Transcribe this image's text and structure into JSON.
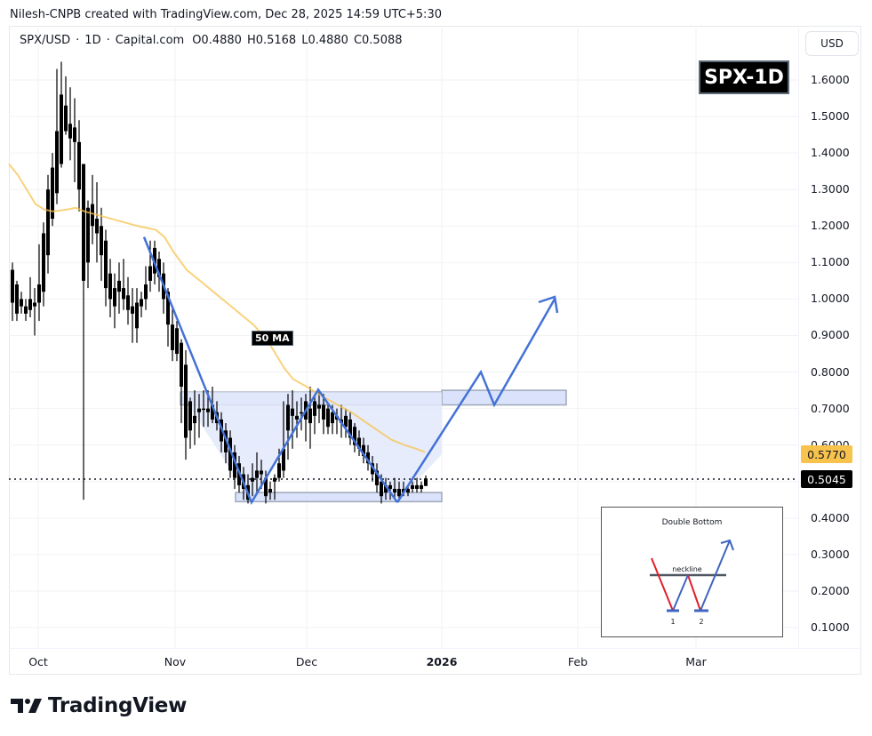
{
  "header": {
    "credit": "Nilesh-CNPB created with TradingView.com, Dec 28, 2025 14:59 UTC+5:30"
  },
  "legend": {
    "symbol": "SPX/USD",
    "sep1": "·",
    "interval": "1D",
    "sep2": "·",
    "source": "Capital.com",
    "open": "O0.4880",
    "high": "H0.5168",
    "low": "L0.4880",
    "close": "C0.5088"
  },
  "currency_button": "USD",
  "chart_title_badge": "SPX-1D",
  "ma_label": "50 MA",
  "price_tags": {
    "ma_value": "0.5770",
    "last_price": "0.5045"
  },
  "inset": {
    "title": "Double Bottom",
    "neckline_label": "neckline",
    "bottom1_label": "1",
    "bottom2_label": "2"
  },
  "brand": {
    "name": "TradingView"
  },
  "colors": {
    "candle": "#000000",
    "ma_line": "#f7c34d",
    "pattern_line": "#4472d6",
    "zone_fill": "#d6e0fb",
    "zone_border": "#9ea8b8",
    "inset_red": "#e0202a",
    "inset_blue": "#3f64c0",
    "inset_neck": "#4f5661"
  },
  "chart_data": {
    "type": "candlestick",
    "title": "SPX/USD · 1D · Capital.com",
    "xlabel": "",
    "ylabel": "USD",
    "ylim": [
      0.05,
      1.75
    ],
    "grid": true,
    "y_ticks": [
      "1.6000",
      "1.5000",
      "1.4000",
      "1.3000",
      "1.2000",
      "1.1000",
      "1.0000",
      "0.9000",
      "0.8000",
      "0.7000",
      "0.6000",
      "0.5000",
      "0.4000",
      "0.3000",
      "0.2000",
      "0.1000"
    ],
    "x_ticks": [
      "Oct",
      "Nov",
      "Dec",
      "2026",
      "Feb",
      "Mar"
    ],
    "last_price": 0.5045,
    "ma50_last": 0.577,
    "ohlc_last": {
      "open": 0.488,
      "high": 0.5168,
      "low": 0.488,
      "close": 0.5088
    },
    "candles": [
      {
        "x": 14,
        "o": 1.08,
        "h": 1.1,
        "l": 0.94,
        "c": 0.99
      },
      {
        "x": 19,
        "o": 1.04,
        "h": 1.05,
        "l": 0.94,
        "c": 0.96
      },
      {
        "x": 24,
        "o": 1.0,
        "h": 1.02,
        "l": 0.96,
        "c": 0.98
      },
      {
        "x": 29,
        "o": 0.98,
        "h": 1.0,
        "l": 0.94,
        "c": 0.96
      },
      {
        "x": 34,
        "o": 0.97,
        "h": 1.06,
        "l": 0.95,
        "c": 1.0
      },
      {
        "x": 39,
        "o": 0.98,
        "h": 1.03,
        "l": 0.9,
        "c": 0.99
      },
      {
        "x": 44,
        "o": 0.99,
        "h": 1.15,
        "l": 0.94,
        "c": 1.04
      },
      {
        "x": 49,
        "o": 1.02,
        "h": 1.21,
        "l": 0.98,
        "c": 1.18
      },
      {
        "x": 54,
        "o": 1.12,
        "h": 1.34,
        "l": 1.07,
        "c": 1.3
      },
      {
        "x": 59,
        "o": 1.22,
        "h": 1.4,
        "l": 1.2,
        "c": 1.36
      },
      {
        "x": 64,
        "o": 1.29,
        "h": 1.63,
        "l": 1.26,
        "c": 1.46
      },
      {
        "x": 69,
        "o": 1.56,
        "h": 1.65,
        "l": 1.36,
        "c": 1.37
      },
      {
        "x": 74,
        "o": 1.46,
        "h": 1.61,
        "l": 1.45,
        "c": 1.53
      },
      {
        "x": 79,
        "o": 1.48,
        "h": 1.58,
        "l": 1.38,
        "c": 1.44
      },
      {
        "x": 84,
        "o": 1.47,
        "h": 1.55,
        "l": 1.32,
        "c": 1.43
      },
      {
        "x": 89,
        "o": 1.43,
        "h": 1.49,
        "l": 1.24,
        "c": 1.3
      },
      {
        "x": 94,
        "o": 1.37,
        "h": 1.37,
        "l": 0.45,
        "c": 1.05
      },
      {
        "x": 99,
        "o": 1.25,
        "h": 1.27,
        "l": 1.03,
        "c": 1.1
      },
      {
        "x": 104,
        "o": 1.2,
        "h": 1.34,
        "l": 1.15,
        "c": 1.26
      },
      {
        "x": 109,
        "o": 1.22,
        "h": 1.32,
        "l": 1.1,
        "c": 1.18
      },
      {
        "x": 114,
        "o": 1.2,
        "h": 1.25,
        "l": 1.05,
        "c": 1.12
      },
      {
        "x": 119,
        "o": 1.16,
        "h": 1.19,
        "l": 0.98,
        "c": 1.03
      },
      {
        "x": 124,
        "o": 1.07,
        "h": 1.11,
        "l": 0.95,
        "c": 1.0
      },
      {
        "x": 129,
        "o": 1.03,
        "h": 1.07,
        "l": 0.92,
        "c": 0.98
      },
      {
        "x": 134,
        "o": 1.05,
        "h": 1.1,
        "l": 0.96,
        "c": 1.02
      },
      {
        "x": 139,
        "o": 1.03,
        "h": 1.11,
        "l": 0.97,
        "c": 1.0
      },
      {
        "x": 144,
        "o": 1.01,
        "h": 1.06,
        "l": 0.93,
        "c": 0.97
      },
      {
        "x": 149,
        "o": 0.98,
        "h": 1.03,
        "l": 0.88,
        "c": 0.96
      },
      {
        "x": 154,
        "o": 0.99,
        "h": 1.03,
        "l": 0.88,
        "c": 0.92
      },
      {
        "x": 159,
        "o": 1.0,
        "h": 1.02,
        "l": 0.95,
        "c": 0.98
      },
      {
        "x": 164,
        "o": 1.04,
        "h": 1.09,
        "l": 0.97,
        "c": 1.0
      },
      {
        "x": 169,
        "o": 1.09,
        "h": 1.16,
        "l": 1.02,
        "c": 1.05
      },
      {
        "x": 174,
        "o": 1.14,
        "h": 1.16,
        "l": 1.04,
        "c": 1.07
      },
      {
        "x": 179,
        "o": 1.11,
        "h": 1.13,
        "l": 1.02,
        "c": 1.06
      },
      {
        "x": 184,
        "o": 1.07,
        "h": 1.1,
        "l": 0.96,
        "c": 1.0
      },
      {
        "x": 189,
        "o": 1.02,
        "h": 1.03,
        "l": 0.87,
        "c": 0.93
      },
      {
        "x": 194,
        "o": 0.93,
        "h": 0.98,
        "l": 0.83,
        "c": 0.86
      },
      {
        "x": 199,
        "o": 0.92,
        "h": 0.94,
        "l": 0.83,
        "c": 0.85
      },
      {
        "x": 204,
        "o": 0.88,
        "h": 0.89,
        "l": 0.66,
        "c": 0.76
      },
      {
        "x": 209,
        "o": 0.82,
        "h": 0.86,
        "l": 0.56,
        "c": 0.62
      },
      {
        "x": 214,
        "o": 0.72,
        "h": 0.73,
        "l": 0.59,
        "c": 0.64
      },
      {
        "x": 219,
        "o": 0.68,
        "h": 0.75,
        "l": 0.6,
        "c": 0.66
      },
      {
        "x": 224,
        "o": 0.7,
        "h": 0.74,
        "l": 0.62,
        "c": 0.69
      },
      {
        "x": 229,
        "o": 0.7,
        "h": 0.75,
        "l": 0.65,
        "c": 0.7
      },
      {
        "x": 234,
        "o": 0.7,
        "h": 0.75,
        "l": 0.65,
        "c": 0.69
      },
      {
        "x": 239,
        "o": 0.71,
        "h": 0.76,
        "l": 0.66,
        "c": 0.67
      },
      {
        "x": 244,
        "o": 0.69,
        "h": 0.72,
        "l": 0.64,
        "c": 0.66
      },
      {
        "x": 249,
        "o": 0.67,
        "h": 0.69,
        "l": 0.58,
        "c": 0.61
      },
      {
        "x": 254,
        "o": 0.64,
        "h": 0.66,
        "l": 0.55,
        "c": 0.58
      },
      {
        "x": 259,
        "o": 0.62,
        "h": 0.64,
        "l": 0.51,
        "c": 0.53
      },
      {
        "x": 264,
        "o": 0.58,
        "h": 0.6,
        "l": 0.48,
        "c": 0.51
      },
      {
        "x": 269,
        "o": 0.55,
        "h": 0.57,
        "l": 0.47,
        "c": 0.49
      },
      {
        "x": 274,
        "o": 0.52,
        "h": 0.54,
        "l": 0.45,
        "c": 0.48
      },
      {
        "x": 279,
        "o": 0.49,
        "h": 0.52,
        "l": 0.44,
        "c": 0.45
      },
      {
        "x": 284,
        "o": 0.51,
        "h": 0.55,
        "l": 0.46,
        "c": 0.5
      },
      {
        "x": 289,
        "o": 0.53,
        "h": 0.58,
        "l": 0.47,
        "c": 0.51
      },
      {
        "x": 294,
        "o": 0.52,
        "h": 0.56,
        "l": 0.48,
        "c": 0.53
      },
      {
        "x": 299,
        "o": 0.51,
        "h": 0.53,
        "l": 0.44,
        "c": 0.46
      },
      {
        "x": 304,
        "o": 0.47,
        "h": 0.5,
        "l": 0.45,
        "c": 0.48
      },
      {
        "x": 309,
        "o": 0.5,
        "h": 0.52,
        "l": 0.45,
        "c": 0.51
      },
      {
        "x": 314,
        "o": 0.55,
        "h": 0.59,
        "l": 0.5,
        "c": 0.51
      },
      {
        "x": 319,
        "o": 0.59,
        "h": 0.72,
        "l": 0.51,
        "c": 0.53
      },
      {
        "x": 324,
        "o": 0.64,
        "h": 0.74,
        "l": 0.56,
        "c": 0.71
      },
      {
        "x": 329,
        "o": 0.7,
        "h": 0.75,
        "l": 0.59,
        "c": 0.68
      },
      {
        "x": 334,
        "o": 0.68,
        "h": 0.72,
        "l": 0.62,
        "c": 0.67
      },
      {
        "x": 339,
        "o": 0.69,
        "h": 0.73,
        "l": 0.64,
        "c": 0.69
      },
      {
        "x": 344,
        "o": 0.72,
        "h": 0.74,
        "l": 0.61,
        "c": 0.67
      },
      {
        "x": 349,
        "o": 0.7,
        "h": 0.76,
        "l": 0.59,
        "c": 0.66
      },
      {
        "x": 354,
        "o": 0.72,
        "h": 0.74,
        "l": 0.63,
        "c": 0.68
      },
      {
        "x": 359,
        "o": 0.71,
        "h": 0.75,
        "l": 0.66,
        "c": 0.7
      },
      {
        "x": 364,
        "o": 0.71,
        "h": 0.74,
        "l": 0.63,
        "c": 0.67
      },
      {
        "x": 369,
        "o": 0.7,
        "h": 0.71,
        "l": 0.63,
        "c": 0.65
      },
      {
        "x": 374,
        "o": 0.69,
        "h": 0.71,
        "l": 0.63,
        "c": 0.66
      },
      {
        "x": 379,
        "o": 0.68,
        "h": 0.7,
        "l": 0.63,
        "c": 0.67
      },
      {
        "x": 384,
        "o": 0.67,
        "h": 0.71,
        "l": 0.62,
        "c": 0.66
      },
      {
        "x": 389,
        "o": 0.68,
        "h": 0.7,
        "l": 0.62,
        "c": 0.65
      },
      {
        "x": 394,
        "o": 0.67,
        "h": 0.69,
        "l": 0.6,
        "c": 0.62
      },
      {
        "x": 399,
        "o": 0.65,
        "h": 0.66,
        "l": 0.58,
        "c": 0.6
      },
      {
        "x": 404,
        "o": 0.62,
        "h": 0.64,
        "l": 0.57,
        "c": 0.59
      },
      {
        "x": 409,
        "o": 0.6,
        "h": 0.62,
        "l": 0.55,
        "c": 0.57
      },
      {
        "x": 414,
        "o": 0.58,
        "h": 0.6,
        "l": 0.53,
        "c": 0.55
      },
      {
        "x": 419,
        "o": 0.55,
        "h": 0.57,
        "l": 0.5,
        "c": 0.52
      },
      {
        "x": 424,
        "o": 0.53,
        "h": 0.55,
        "l": 0.47,
        "c": 0.49
      },
      {
        "x": 429,
        "o": 0.5,
        "h": 0.52,
        "l": 0.44,
        "c": 0.46
      },
      {
        "x": 434,
        "o": 0.49,
        "h": 0.51,
        "l": 0.45,
        "c": 0.47
      },
      {
        "x": 439,
        "o": 0.49,
        "h": 0.5,
        "l": 0.45,
        "c": 0.48
      },
      {
        "x": 444,
        "o": 0.48,
        "h": 0.51,
        "l": 0.45,
        "c": 0.47
      },
      {
        "x": 449,
        "o": 0.48,
        "h": 0.5,
        "l": 0.45,
        "c": 0.46
      },
      {
        "x": 454,
        "o": 0.48,
        "h": 0.5,
        "l": 0.46,
        "c": 0.47
      },
      {
        "x": 459,
        "o": 0.47,
        "h": 0.49,
        "l": 0.46,
        "c": 0.48
      },
      {
        "x": 464,
        "o": 0.48,
        "h": 0.5,
        "l": 0.47,
        "c": 0.49
      },
      {
        "x": 469,
        "o": 0.49,
        "h": 0.51,
        "l": 0.47,
        "c": 0.48
      },
      {
        "x": 474,
        "o": 0.48,
        "h": 0.5,
        "l": 0.47,
        "c": 0.49
      },
      {
        "x": 479,
        "o": 0.488,
        "h": 0.5168,
        "l": 0.488,
        "c": 0.5088
      }
    ],
    "ma50": [
      [
        10,
        1.37
      ],
      [
        20,
        1.34
      ],
      [
        30,
        1.3
      ],
      [
        40,
        1.26
      ],
      [
        50,
        1.245
      ],
      [
        60,
        1.24
      ],
      [
        75,
        1.245
      ],
      [
        85,
        1.25
      ],
      [
        95,
        1.24
      ],
      [
        110,
        1.23
      ],
      [
        125,
        1.22
      ],
      [
        140,
        1.21
      ],
      [
        155,
        1.2
      ],
      [
        165,
        1.195
      ],
      [
        175,
        1.19
      ],
      [
        185,
        1.17
      ],
      [
        195,
        1.13
      ],
      [
        210,
        1.08
      ],
      [
        225,
        1.05
      ],
      [
        240,
        1.02
      ],
      [
        255,
        0.99
      ],
      [
        270,
        0.96
      ],
      [
        285,
        0.93
      ],
      [
        300,
        0.89
      ],
      [
        310,
        0.85
      ],
      [
        320,
        0.81
      ],
      [
        330,
        0.78
      ],
      [
        345,
        0.76
      ],
      [
        355,
        0.745
      ],
      [
        365,
        0.73
      ],
      [
        380,
        0.71
      ],
      [
        395,
        0.69
      ],
      [
        410,
        0.665
      ],
      [
        425,
        0.64
      ],
      [
        440,
        0.615
      ],
      [
        455,
        0.6
      ],
      [
        468,
        0.59
      ],
      [
        478,
        0.581
      ]
    ],
    "annotations": [
      {
        "type": "zone",
        "label": "neckline resistance",
        "y_top": 0.745,
        "y_bottom": 0.71,
        "x_start": 203,
        "x_end": 497
      },
      {
        "type": "zone",
        "label": "double bottom support",
        "y_top": 0.47,
        "y_bottom": 0.445,
        "x_start": 265,
        "x_end": 497
      },
      {
        "type": "zone",
        "label": "neckline extension",
        "y_top": 0.75,
        "y_bottom": 0.71,
        "x_start": 497,
        "x_end": 637
      },
      {
        "type": "path",
        "label": "W pattern",
        "points": [
          [
            162,
            1.17
          ],
          [
            283,
            0.443
          ],
          [
            358,
            0.752
          ],
          [
            447,
            0.443
          ]
        ]
      },
      {
        "type": "projection",
        "label": "projected breakout",
        "points": [
          [
            447,
            0.443
          ],
          [
            541,
            0.8
          ],
          [
            556,
            0.71
          ],
          [
            624,
            1.0
          ]
        ]
      },
      {
        "type": "text",
        "label": "50 MA"
      },
      {
        "type": "text",
        "label": "SPX-1D"
      },
      {
        "type": "inset",
        "label": "Double Bottom"
      }
    ]
  }
}
